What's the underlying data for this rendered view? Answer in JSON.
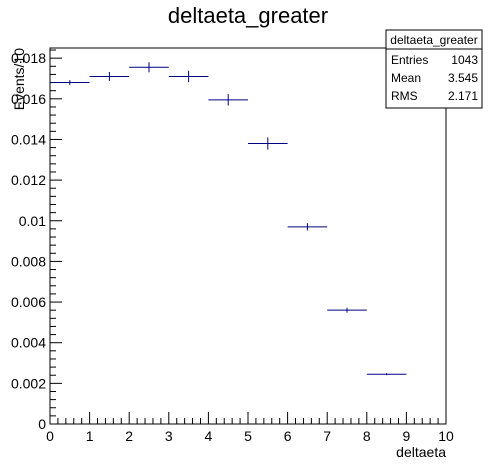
{
  "chart_data": {
    "type": "scatter",
    "title": "deltaeta_greater",
    "xlabel": "deltaeta",
    "ylabel": "Events/10",
    "xlim": [
      0,
      10
    ],
    "ylim": [
      0,
      0.0185
    ],
    "x_ticks": [
      "0",
      "1",
      "2",
      "3",
      "4",
      "5",
      "6",
      "7",
      "8",
      "9",
      "10"
    ],
    "y_ticks": [
      {
        "value": 0,
        "label": "0"
      },
      {
        "value": 0.002,
        "label": "0.002"
      },
      {
        "value": 0.004,
        "label": "0.004"
      },
      {
        "value": 0.006,
        "label": "0.006"
      },
      {
        "value": 0.008,
        "label": "0.008"
      },
      {
        "value": 0.01,
        "label": "0.01"
      },
      {
        "value": 0.012,
        "label": "0.012"
      },
      {
        "value": 0.014,
        "label": "0.014"
      },
      {
        "value": 0.016,
        "label": "0.016"
      },
      {
        "value": 0.018,
        "label": "0.018"
      }
    ],
    "series": [
      {
        "x": [
          0.5,
          1.5,
          2.5,
          3.5,
          4.5,
          5.5,
          6.5,
          7.5,
          8.5
        ],
        "values": [
          0.0168,
          0.0171,
          0.01755,
          0.0171,
          0.01595,
          0.0138,
          0.0097,
          0.0056,
          0.00245
        ],
        "y_error": [
          0.00012,
          0.00022,
          0.00025,
          0.00028,
          0.00028,
          0.0003,
          0.00018,
          0.00012,
          5e-05
        ],
        "x_half_width": 0.5,
        "color": "#000080"
      }
    ],
    "stats_box": {
      "title": "deltaeta_greater",
      "rows": [
        {
          "label": "Entries",
          "value": "1043"
        },
        {
          "label": "Mean",
          "value": "3.545"
        },
        {
          "label": "RMS",
          "value": "2.171"
        }
      ]
    }
  }
}
